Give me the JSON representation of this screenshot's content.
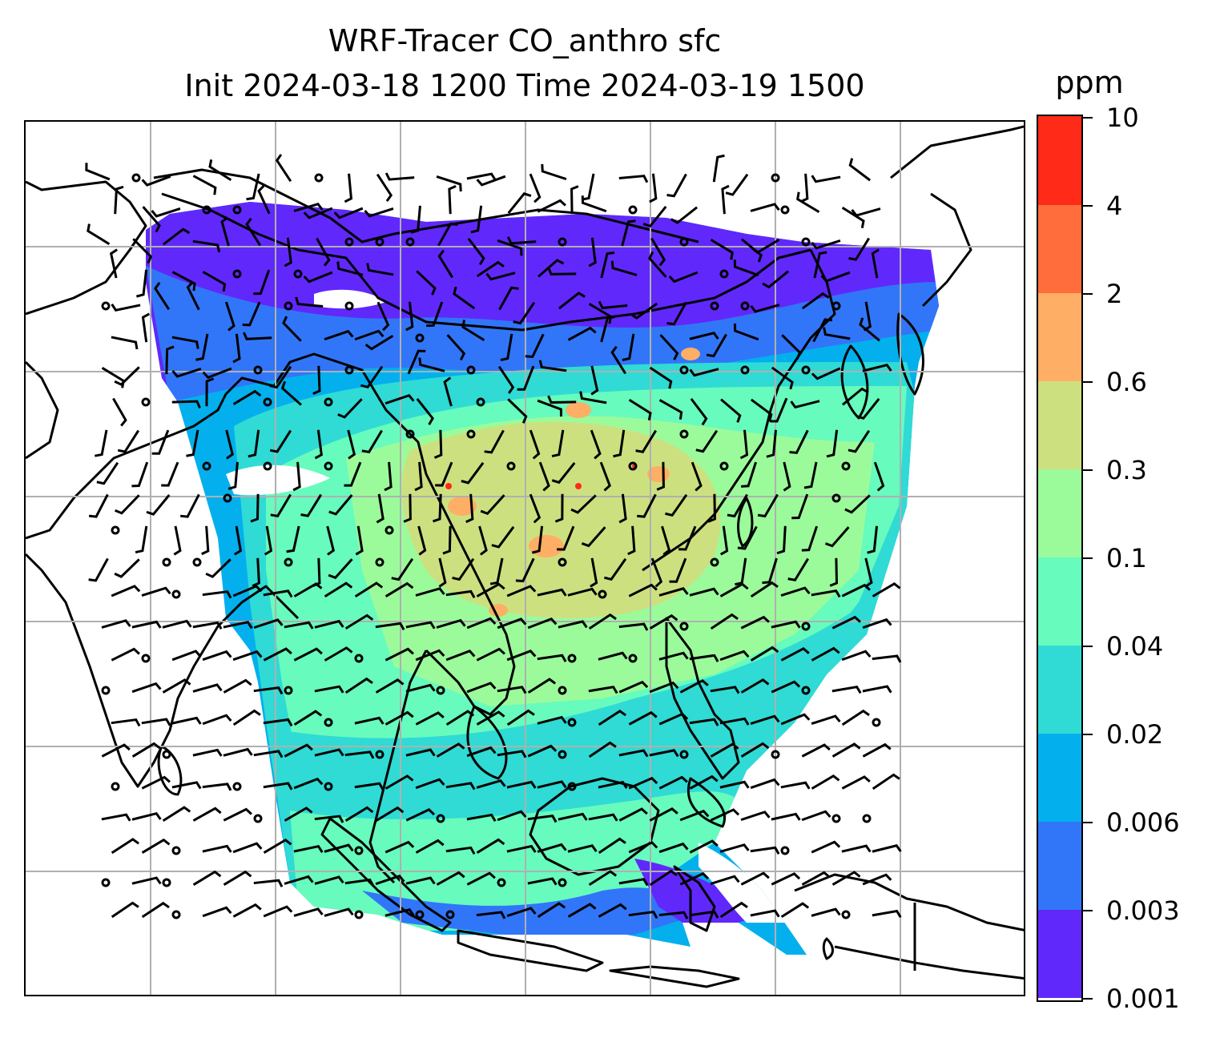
{
  "title": {
    "line1": "WRF-Tracer CO_anthro sfc",
    "line2": "Init 2024-03-18 1200 Time 2024-03-19 1500"
  },
  "colorbar": {
    "unit": "ppm",
    "levels": [
      "0.001",
      "0.003",
      "0.006",
      "0.02",
      "0.04",
      "0.1",
      "0.3",
      "0.6",
      "2",
      "4",
      "10"
    ],
    "colors": [
      "#6128fb",
      "#3176f8",
      "#03b0ed",
      "#2fdbd4",
      "#67fbbd",
      "#9bfb9b",
      "#cde080",
      "#feae65",
      "#ff6d3c",
      "#ff2a17"
    ]
  },
  "map": {
    "variable": "CO_anthro",
    "gridlines": true,
    "wind_barbs": true,
    "coastlines": true
  }
}
